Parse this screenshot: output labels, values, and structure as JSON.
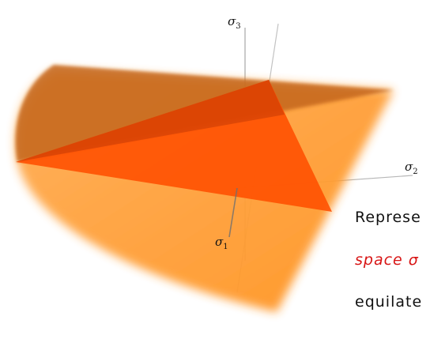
{
  "axes": {
    "sigma_1": {
      "symbol": "σ",
      "sub": "1"
    },
    "sigma_2": {
      "symbol": "σ",
      "sub": "2"
    },
    "sigma_3": {
      "symbol": "σ",
      "sub": "3"
    }
  },
  "caption": {
    "line_1": "Represe",
    "line_2": "space σ",
    "line_3": "equilate"
  },
  "colors": {
    "cone_fill": "#ff9a33",
    "plane_fill": "#c96a1a",
    "triangle_fill": "#ff5200",
    "axis_line": "#8a8a8a",
    "caption_highlight": "#d81414"
  }
}
